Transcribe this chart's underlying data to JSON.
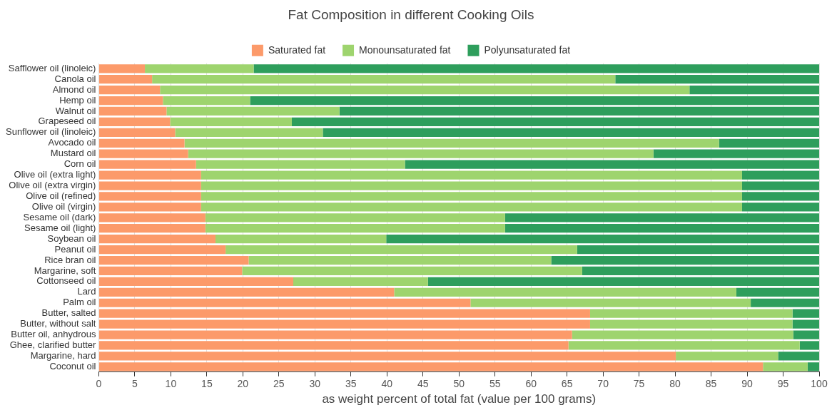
{
  "chart_data": {
    "type": "bar",
    "orientation": "horizontal",
    "stacked": true,
    "title": "Fat Composition in different Cooking Oils",
    "xlabel": "as weight percent of total fat (value per 100 grams)",
    "categories": [
      "Safflower oil (linoleic)",
      "Canola oil",
      "Almond oil",
      "Hemp oil",
      "Walnut oil",
      "Grapeseed oil",
      "Sunflower oil (linoleic)",
      "Avocado oil",
      "Mustard oil",
      "Corn oil",
      "Olive oil (extra light)",
      "Olive oil (extra virgin)",
      "Olive oil (refined)",
      "Olive oil (virgin)",
      "Sesame oil (dark)",
      "Sesame oil (light)",
      "Soybean oil",
      "Peanut oil",
      "Rice bran oil",
      "Margarine, soft",
      "Cottonseed oil",
      "Lard",
      "Palm oil",
      "Butter, salted",
      "Butter, without salt",
      "Butter oil, anhydrous",
      "Ghee, clarified butter",
      "Margarine, hard",
      "Coconut oil"
    ],
    "series": [
      {
        "name": "Saturated fat",
        "color": "#fc9a6a",
        "values": [
          6.4,
          7.4,
          8.5,
          8.9,
          9.4,
          9.9,
          10.6,
          11.9,
          12.4,
          13.5,
          14.2,
          14.2,
          14.2,
          14.2,
          14.8,
          14.8,
          16.2,
          17.6,
          20.8,
          19.9,
          27.0,
          41.0,
          51.6,
          68.2,
          68.2,
          65.7,
          65.2,
          80.1,
          92.2
        ]
      },
      {
        "name": "Monounsaturated fat",
        "color": "#9ed46e",
        "values": [
          15.1,
          64.3,
          73.5,
          12.1,
          24.0,
          16.9,
          20.5,
          74.2,
          64.6,
          29.0,
          75.1,
          75.1,
          75.1,
          75.1,
          41.6,
          41.6,
          23.7,
          48.8,
          42.0,
          47.2,
          18.7,
          47.5,
          38.9,
          28.1,
          28.1,
          30.7,
          32.1,
          14.2,
          6.2
        ]
      },
      {
        "name": "Polyunsaturated fat",
        "color": "#2e9e5c",
        "values": [
          78.5,
          28.3,
          18.0,
          79.0,
          66.6,
          73.2,
          68.9,
          13.9,
          23.0,
          57.5,
          10.7,
          10.7,
          10.7,
          10.7,
          43.6,
          43.6,
          60.1,
          33.6,
          37.2,
          32.9,
          54.3,
          11.5,
          9.5,
          3.7,
          3.7,
          3.6,
          2.7,
          5.7,
          1.6
        ]
      }
    ],
    "xlim": [
      0,
      100
    ],
    "xticks": [
      0,
      5,
      10,
      15,
      20,
      25,
      30,
      35,
      40,
      45,
      50,
      55,
      60,
      65,
      70,
      75,
      80,
      85,
      90,
      95,
      100
    ],
    "grid": "x",
    "legend": "top"
  }
}
